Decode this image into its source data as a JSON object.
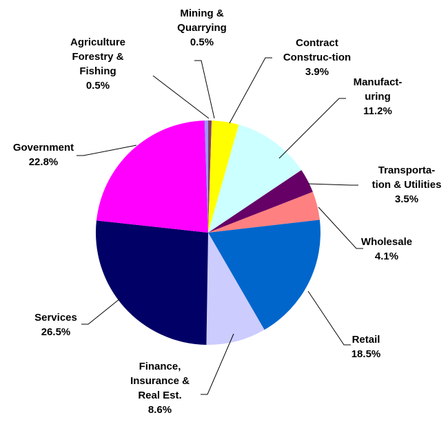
{
  "chart_data": {
    "type": "pie",
    "title": "",
    "start_angle_deg": 0,
    "direction": "clockwise",
    "slices": [
      {
        "key": "mining",
        "label_lines": [
          "Mining &",
          "Quarrying"
        ],
        "value_text": "0.5%",
        "value": 0.5,
        "color": "#7F3F6B"
      },
      {
        "key": "construction",
        "label_lines": [
          "Contract",
          "Construc-tion"
        ],
        "value_text": "3.9%",
        "value": 3.9,
        "color": "#FFFF00"
      },
      {
        "key": "manufacturing",
        "label_lines": [
          "Manufact-",
          "uring"
        ],
        "value_text": "11.2%",
        "value": 11.2,
        "color": "#CCFFFF"
      },
      {
        "key": "transportation",
        "label_lines": [
          "Transporta-",
          "tion & Utilities"
        ],
        "value_text": "3.5%",
        "value": 3.5,
        "color": "#660066"
      },
      {
        "key": "wholesale",
        "label_lines": [
          "Wholesale"
        ],
        "value_text": "4.1%",
        "value": 4.1,
        "color": "#FF8080"
      },
      {
        "key": "retail",
        "label_lines": [
          "Retail"
        ],
        "value_text": "18.5%",
        "value": 18.5,
        "color": "#0066CC"
      },
      {
        "key": "finance",
        "label_lines": [
          "Finance,",
          "Insurance &",
          "Real Est."
        ],
        "value_text": "8.6%",
        "value": 8.6,
        "color": "#CCCCFF"
      },
      {
        "key": "services",
        "label_lines": [
          "Services"
        ],
        "value_text": "26.5%",
        "value": 26.5,
        "color": "#000066"
      },
      {
        "key": "government",
        "label_lines": [
          "Government"
        ],
        "value_text": "22.8%",
        "value": 22.8,
        "color": "#FF00FF"
      },
      {
        "key": "agriculture",
        "label_lines": [
          "Agriculture",
          "Forestry &",
          "Fishing"
        ],
        "value_text": "0.5%",
        "value": 0.5,
        "color": "#9999FF"
      }
    ]
  }
}
